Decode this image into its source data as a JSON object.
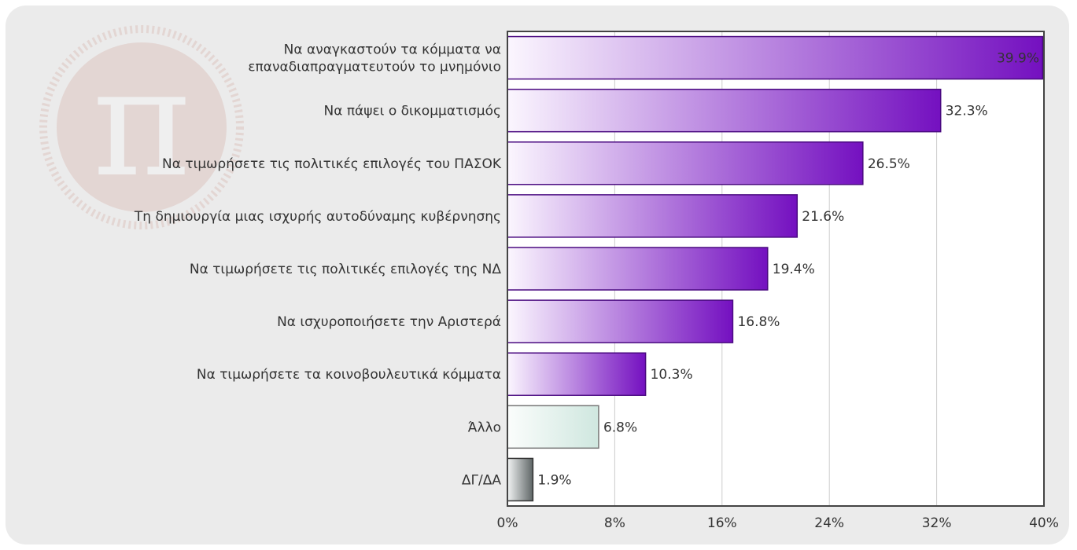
{
  "chart_data": {
    "type": "bar",
    "orientation": "horizontal",
    "categories": [
      [
        "Να αναγκαστούν τα κόμματα να",
        "επαναδιαπραγματευτούν το μνημόνιο"
      ],
      [
        "Να πάψει ο δικομματισμός"
      ],
      [
        "Να τιμωρήσετε τις πολιτικές επιλογές του ΠΑΣΟΚ"
      ],
      [
        "Τη δημιουργία μιας ισχυρής αυτοδύναμης κυβέρνησης"
      ],
      [
        "Να τιμωρήσετε τις πολιτικές επιλογές της ΝΔ"
      ],
      [
        "Να ισχυροποιήσετε την Αριστερά"
      ],
      [
        "Να τιμωρήσετε τα κοινοβουλευτικά κόμματα"
      ],
      [
        "Άλλο"
      ],
      [
        "ΔΓ/ΔΑ"
      ]
    ],
    "values": [
      39.9,
      32.3,
      26.5,
      21.6,
      19.4,
      16.8,
      10.3,
      6.8,
      1.9
    ],
    "value_labels": [
      "39.9%",
      "32.3%",
      "26.5%",
      "21.6%",
      "19.4%",
      "16.8%",
      "10.3%",
      "6.8%",
      "1.9%"
    ],
    "bar_styles": [
      "purple",
      "purple",
      "purple",
      "purple",
      "purple",
      "purple",
      "purple",
      "mint",
      "gray"
    ],
    "xlim": [
      0,
      40
    ],
    "xticks": [
      0,
      8,
      16,
      24,
      32,
      40
    ],
    "xtick_labels": [
      "0%",
      "8%",
      "16%",
      "24%",
      "32%",
      "40%"
    ],
    "title": "",
    "xlabel": "",
    "ylabel": "",
    "grid": true,
    "colors": {
      "purple_light": "#fbf6fe",
      "purple_dark": "#7410c0",
      "mint_light": "#fbfdfc",
      "mint_dark": "#cfe7df",
      "gray_light": "#f2f4f4",
      "gray_dark": "#5e6566",
      "plot_background": "#ffffff",
      "frame_background": "#ebebeb",
      "gridline": "#cccccc",
      "axis": "#444444",
      "text": "#333333"
    }
  },
  "watermark": {
    "glyph": "π"
  }
}
